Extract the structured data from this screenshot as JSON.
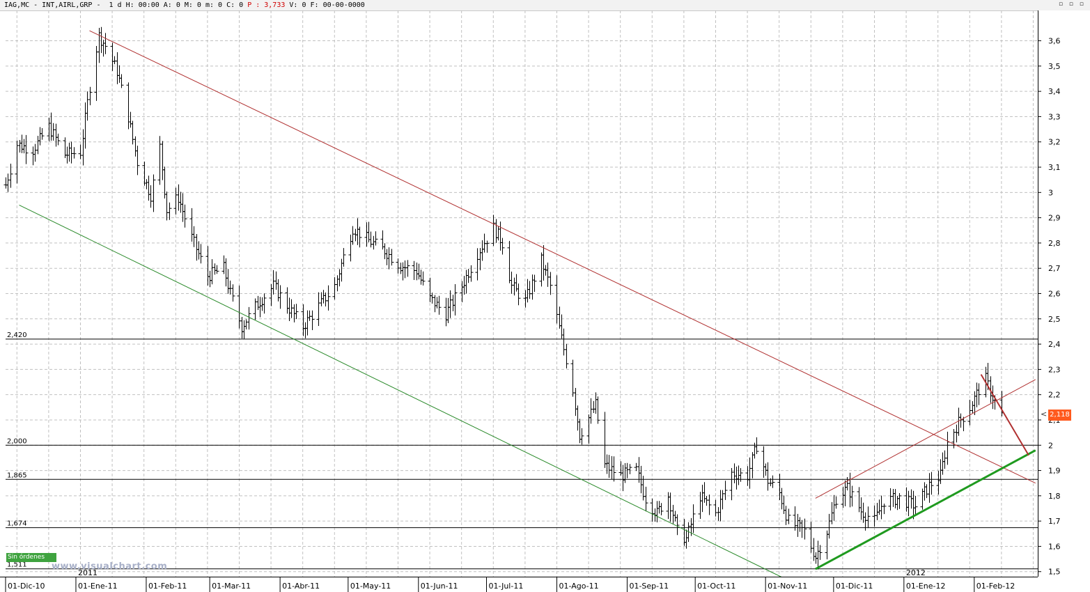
{
  "header": {
    "symbol": "IAG,MC - INT,AIRL,GRP - ",
    "period": "1 d H: 00:00 A: 0 M: 0 m: 0 C: 0",
    "p_label": "P : 3,733",
    "rest": "V: 0 F: 00-00-0000",
    "window_controls": "▫ ▫ ▫"
  },
  "badge": "Sin órdenes",
  "watermark": "www.visualchart.com",
  "last_price": "2,118",
  "last_price_value": 2.118,
  "colors": {
    "bars": "#000000",
    "grid": "#c0c0c0",
    "resistance": "#b03030",
    "support": "#2a8a2a",
    "support_bold": "#1f9a1f",
    "level_lines": "#000000",
    "price_tag": "#ff5a1e"
  },
  "chart_data": {
    "type": "ohlc",
    "title": "",
    "ylim": [
      1.48,
      3.72
    ],
    "x_start": "2010-12-01",
    "x_end": "2012-02-29",
    "y_ticks": [
      "3,6",
      "3,5",
      "3,4",
      "3,3",
      "3,2",
      "3,1",
      "3",
      "2,9",
      "2,8",
      "2,7",
      "2,6",
      "2,5",
      "2,4",
      "2,3",
      "2,2",
      "2,1",
      "2",
      "1,9",
      "1,8",
      "1,7",
      "1,6",
      "1,5"
    ],
    "y_tick_values": [
      3.6,
      3.5,
      3.4,
      3.3,
      3.2,
      3.1,
      3.0,
      2.9,
      2.8,
      2.7,
      2.6,
      2.5,
      2.4,
      2.3,
      2.2,
      2.1,
      2.0,
      1.9,
      1.8,
      1.7,
      1.6,
      1.5
    ],
    "x_ticks": [
      {
        "label": "01-Dic-10",
        "date": "2010-12-01"
      },
      {
        "label": "01-Ene-11",
        "date": "2011-01-01"
      },
      {
        "label": "01-Feb-11",
        "date": "2011-02-01"
      },
      {
        "label": "01-Mar-11",
        "date": "2011-03-01"
      },
      {
        "label": "01-Abr-11",
        "date": "2011-04-01"
      },
      {
        "label": "01-May-11",
        "date": "2011-05-01"
      },
      {
        "label": "01-Jun-11",
        "date": "2011-06-01"
      },
      {
        "label": "01-Jul-11",
        "date": "2011-07-01"
      },
      {
        "label": "01-Ago-11",
        "date": "2011-08-01"
      },
      {
        "label": "01-Sep-11",
        "date": "2011-09-01"
      },
      {
        "label": "01-Oct-11",
        "date": "2011-10-01"
      },
      {
        "label": "01-Nov-11",
        "date": "2011-11-01"
      },
      {
        "label": "01-Dic-11",
        "date": "2011-12-01"
      },
      {
        "label": "01-Ene-12",
        "date": "2012-01-01"
      },
      {
        "label": "01-Feb-12",
        "date": "2012-02-01"
      }
    ],
    "year_markers": [
      {
        "label": "2011",
        "date": "2011-01-01"
      },
      {
        "label": "2012",
        "date": "2012-01-01"
      }
    ],
    "horizontal_levels": [
      {
        "label": "2,420",
        "value": 2.42
      },
      {
        "label": "2,000",
        "value": 2.0
      },
      {
        "label": "1,865",
        "value": 1.865
      },
      {
        "label": "1,674",
        "value": 1.674
      },
      {
        "label": "1,511",
        "value": 1.511
      }
    ],
    "trend_lines": [
      {
        "kind": "resistance",
        "from": [
          "2011-01-07",
          3.64
        ],
        "to": [
          "2012-02-28",
          1.85
        ],
        "width": 1
      },
      {
        "kind": "support",
        "from": [
          "2010-12-07",
          2.95
        ],
        "to": [
          "2011-11-10",
          1.47
        ],
        "width": 1
      },
      {
        "kind": "channel_top",
        "from": [
          "2011-11-23",
          1.79
        ],
        "to": [
          "2012-02-28",
          2.26
        ],
        "width": 1
      },
      {
        "kind": "support_bold",
        "from": [
          "2011-11-23",
          1.51
        ],
        "to": [
          "2012-02-28",
          1.98
        ],
        "width": 3
      },
      {
        "kind": "short_term_down",
        "from": [
          "2012-02-04",
          2.28
        ],
        "to": [
          "2012-02-25",
          1.96
        ],
        "width": 2
      }
    ],
    "anchors": [
      {
        "date": "2010-12-01",
        "price": 3.03
      },
      {
        "date": "2010-12-06",
        "price": 3.19
      },
      {
        "date": "2010-12-13",
        "price": 3.17
      },
      {
        "date": "2010-12-20",
        "price": 3.26
      },
      {
        "date": "2010-12-27",
        "price": 3.15
      },
      {
        "date": "2011-01-03",
        "price": 3.16
      },
      {
        "date": "2011-01-07",
        "price": 3.42
      },
      {
        "date": "2011-01-11",
        "price": 3.62
      },
      {
        "date": "2011-01-14",
        "price": 3.58
      },
      {
        "date": "2011-01-19",
        "price": 3.48
      },
      {
        "date": "2011-01-24",
        "price": 3.3
      },
      {
        "date": "2011-01-28",
        "price": 3.12
      },
      {
        "date": "2011-02-03",
        "price": 2.99
      },
      {
        "date": "2011-02-07",
        "price": 3.18
      },
      {
        "date": "2011-02-10",
        "price": 2.93
      },
      {
        "date": "2011-02-15",
        "price": 2.98
      },
      {
        "date": "2011-02-21",
        "price": 2.82
      },
      {
        "date": "2011-02-28",
        "price": 2.67
      },
      {
        "date": "2011-03-07",
        "price": 2.7
      },
      {
        "date": "2011-03-10",
        "price": 2.6
      },
      {
        "date": "2011-03-15",
        "price": 2.47
      },
      {
        "date": "2011-03-22",
        "price": 2.56
      },
      {
        "date": "2011-03-29",
        "price": 2.63
      },
      {
        "date": "2011-04-05",
        "price": 2.54
      },
      {
        "date": "2011-04-11",
        "price": 2.47
      },
      {
        "date": "2011-04-18",
        "price": 2.55
      },
      {
        "date": "2011-04-25",
        "price": 2.63
      },
      {
        "date": "2011-05-03",
        "price": 2.86
      },
      {
        "date": "2011-05-10",
        "price": 2.81
      },
      {
        "date": "2011-05-17",
        "price": 2.77
      },
      {
        "date": "2011-05-24",
        "price": 2.71
      },
      {
        "date": "2011-05-31",
        "price": 2.69
      },
      {
        "date": "2011-06-06",
        "price": 2.58
      },
      {
        "date": "2011-06-13",
        "price": 2.52
      },
      {
        "date": "2011-06-20",
        "price": 2.63
      },
      {
        "date": "2011-06-27",
        "price": 2.76
      },
      {
        "date": "2011-07-04",
        "price": 2.86
      },
      {
        "date": "2011-07-08",
        "price": 2.8
      },
      {
        "date": "2011-07-12",
        "price": 2.63
      },
      {
        "date": "2011-07-18",
        "price": 2.57
      },
      {
        "date": "2011-07-25",
        "price": 2.73
      },
      {
        "date": "2011-07-29",
        "price": 2.63
      },
      {
        "date": "2011-08-04",
        "price": 2.38
      },
      {
        "date": "2011-08-08",
        "price": 2.22
      },
      {
        "date": "2011-08-11",
        "price": 2.04
      },
      {
        "date": "2011-08-18",
        "price": 2.16
      },
      {
        "date": "2011-08-22",
        "price": 1.92
      },
      {
        "date": "2011-08-29",
        "price": 1.88
      },
      {
        "date": "2011-09-05",
        "price": 1.9
      },
      {
        "date": "2011-09-09",
        "price": 1.79
      },
      {
        "date": "2011-09-14",
        "price": 1.73
      },
      {
        "date": "2011-09-19",
        "price": 1.8
      },
      {
        "date": "2011-09-23",
        "price": 1.66
      },
      {
        "date": "2011-09-27",
        "price": 1.63
      },
      {
        "date": "2011-10-03",
        "price": 1.8
      },
      {
        "date": "2011-10-10",
        "price": 1.73
      },
      {
        "date": "2011-10-17",
        "price": 1.89
      },
      {
        "date": "2011-10-24",
        "price": 1.88
      },
      {
        "date": "2011-10-28",
        "price": 2.0
      },
      {
        "date": "2011-11-02",
        "price": 1.86
      },
      {
        "date": "2011-11-07",
        "price": 1.81
      },
      {
        "date": "2011-11-11",
        "price": 1.7
      },
      {
        "date": "2011-11-18",
        "price": 1.66
      },
      {
        "date": "2011-11-23",
        "price": 1.56
      },
      {
        "date": "2011-11-28",
        "price": 1.66
      },
      {
        "date": "2011-12-02",
        "price": 1.79
      },
      {
        "date": "2011-12-07",
        "price": 1.83
      },
      {
        "date": "2011-12-13",
        "price": 1.74
      },
      {
        "date": "2011-12-19",
        "price": 1.7
      },
      {
        "date": "2011-12-23",
        "price": 1.78
      },
      {
        "date": "2011-12-30",
        "price": 1.79
      },
      {
        "date": "2012-01-06",
        "price": 1.76
      },
      {
        "date": "2012-01-12",
        "price": 1.84
      },
      {
        "date": "2012-01-17",
        "price": 1.88
      },
      {
        "date": "2012-01-20",
        "price": 2.01
      },
      {
        "date": "2012-01-25",
        "price": 2.09
      },
      {
        "date": "2012-01-30",
        "price": 2.15
      },
      {
        "date": "2012-02-03",
        "price": 2.22
      },
      {
        "date": "2012-02-06",
        "price": 2.26
      },
      {
        "date": "2012-02-09",
        "price": 2.19
      },
      {
        "date": "2012-02-13",
        "price": 2.12
      }
    ]
  }
}
